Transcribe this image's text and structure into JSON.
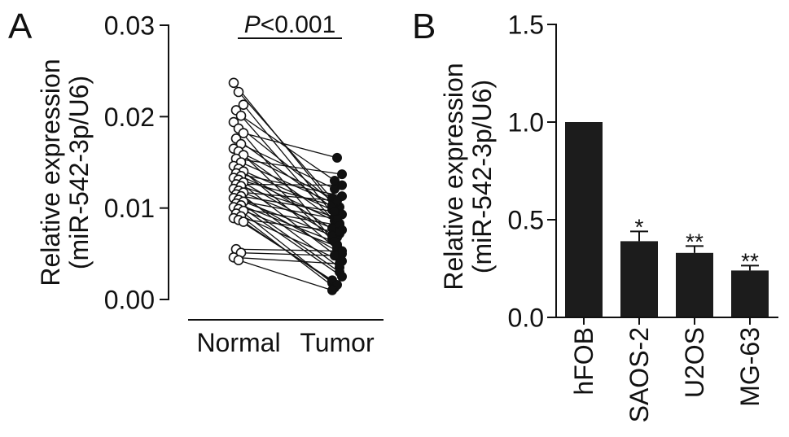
{
  "chart_data": [
    {
      "panel_label": "A",
      "type": "scatter",
      "paired": true,
      "categories": [
        "Normal",
        "Tumor"
      ],
      "markers": {
        "Normal": "open-circle",
        "Tumor": "filled-circle"
      },
      "ylabel": [
        "Relative expression",
        "(miR-542-3p/U6)"
      ],
      "ylim": [
        0,
        0.03
      ],
      "yticks": [
        "0.00",
        "0.01",
        "0.02",
        "0.03"
      ],
      "annotation": {
        "symbol": "P",
        "text": "<0.001"
      },
      "pairs": [
        [
          0.0237,
          0.0095
        ],
        [
          0.0227,
          0.011
        ],
        [
          0.0213,
          0.0088
        ],
        [
          0.0207,
          0.0076
        ],
        [
          0.0201,
          0.013
        ],
        [
          0.0194,
          0.0101
        ],
        [
          0.0187,
          0.0066
        ],
        [
          0.0182,
          0.0155
        ],
        [
          0.0176,
          0.0093
        ],
        [
          0.017,
          0.0121
        ],
        [
          0.0165,
          0.0083
        ],
        [
          0.0162,
          0.0111
        ],
        [
          0.0158,
          0.006
        ],
        [
          0.0154,
          0.0137
        ],
        [
          0.015,
          0.0105
        ],
        [
          0.0146,
          0.0072
        ],
        [
          0.0143,
          0.0098
        ],
        [
          0.014,
          0.0055
        ],
        [
          0.0138,
          0.0113
        ],
        [
          0.0135,
          0.0086
        ],
        [
          0.0133,
          0.0045
        ],
        [
          0.0131,
          0.0103
        ],
        [
          0.0128,
          0.0068
        ],
        [
          0.0126,
          0.0125
        ],
        [
          0.0124,
          0.009
        ],
        [
          0.0121,
          0.0035
        ],
        [
          0.0119,
          0.0078
        ],
        [
          0.0117,
          0.0108
        ],
        [
          0.0115,
          0.005
        ],
        [
          0.0113,
          0.0096
        ],
        [
          0.0111,
          0.003
        ],
        [
          0.0109,
          0.007
        ],
        [
          0.0107,
          0.0088
        ],
        [
          0.0105,
          0.0025
        ],
        [
          0.0103,
          0.0063
        ],
        [
          0.0101,
          0.0081
        ],
        [
          0.0099,
          0.0018
        ],
        [
          0.0097,
          0.0058
        ],
        [
          0.0094,
          0.0042
        ],
        [
          0.0091,
          0.0013
        ],
        [
          0.0089,
          0.0074
        ],
        [
          0.0087,
          0.0021
        ],
        [
          0.0085,
          0.0016
        ],
        [
          0.0055,
          0.0053
        ],
        [
          0.0051,
          0.0048
        ],
        [
          0.0046,
          0.0039
        ],
        [
          0.0043,
          0.001
        ]
      ]
    },
    {
      "panel_label": "B",
      "type": "bar",
      "categories": [
        "hFOB",
        "SAOS-2",
        "U2OS",
        "MG-63"
      ],
      "values": [
        1.0,
        0.39,
        0.33,
        0.24
      ],
      "errors": [
        0,
        0.05,
        0.035,
        0.025
      ],
      "significance": [
        "",
        "*",
        "**",
        "**"
      ],
      "ylabel": [
        "Relative expression",
        "(miR-542-3p/U6)"
      ],
      "ylim": [
        0,
        1.5
      ],
      "yticks": [
        "0.0",
        "0.5",
        "1.0",
        "1.5"
      ],
      "bar_color": "#1c1c1c"
    }
  ]
}
